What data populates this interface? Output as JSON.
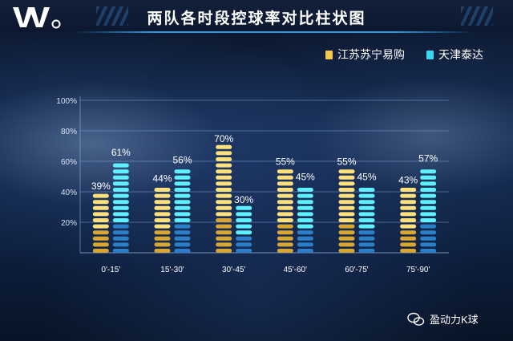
{
  "title": "两队各时段控球率对比柱状图",
  "watermark": "盈动力K球",
  "chart_data": {
    "type": "bar",
    "title": "两队各时段控球率对比柱状图",
    "categories": [
      "0'-15'",
      "15'-30'",
      "30'-45'",
      "45'-60'",
      "60'-75'",
      "75'-90'"
    ],
    "series": [
      {
        "name": "江苏苏宁易购",
        "values": [
          39,
          44,
          70,
          55,
          55,
          43
        ],
        "labels": [
          "39%",
          "44%",
          "70%",
          "55%",
          "55%",
          "43%"
        ],
        "color": "#f5c84b"
      },
      {
        "name": "天津泰达",
        "values": [
          61,
          56,
          30,
          45,
          45,
          57
        ],
        "labels": [
          "61%",
          "56%",
          "30%",
          "45%",
          "45%",
          "57%"
        ],
        "color": "#3ad7f2"
      }
    ],
    "yticks": [
      "20%",
      "40%",
      "60%",
      "80%",
      "100%"
    ],
    "ylim": [
      0,
      100
    ],
    "grid": true,
    "legend": "top-right"
  }
}
